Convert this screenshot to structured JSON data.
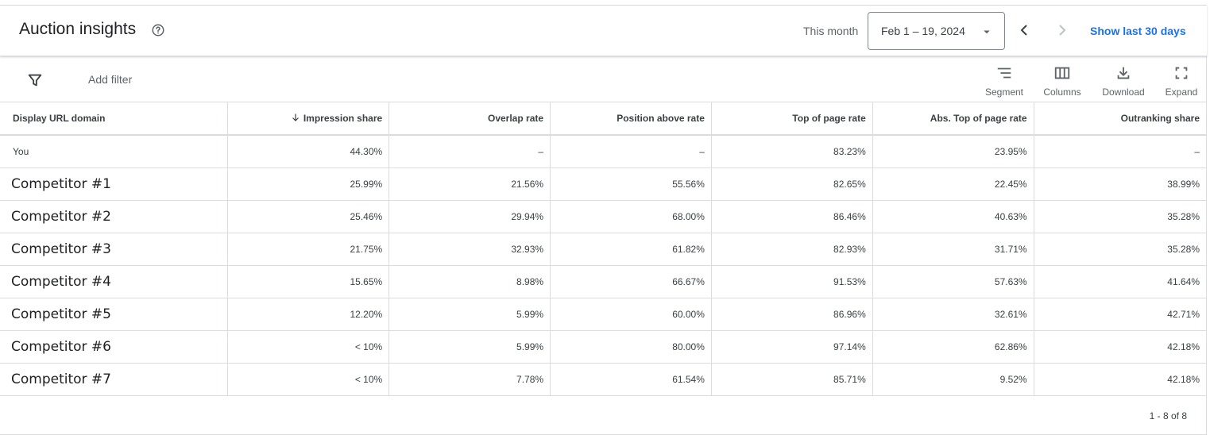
{
  "header": {
    "title": "Auction insights",
    "range_label": "This month",
    "date_range": "Feb 1 – 19, 2024",
    "show_last": "Show last 30 days"
  },
  "icons": {
    "help": "help-circle-icon",
    "caret": "dropdown-caret-icon",
    "prev": "chevron-left-icon",
    "next": "chevron-right-icon",
    "filter": "filter-icon",
    "segment": "segment-icon",
    "columns": "columns-icon",
    "download": "download-icon",
    "expand": "expand-icon"
  },
  "toolbar": {
    "add_filter": "Add filter",
    "segment": "Segment",
    "columns": "Columns",
    "download": "Download",
    "expand": "Expand"
  },
  "table": {
    "columns": [
      "Display URL domain",
      "Impression share",
      "Overlap rate",
      "Position above rate",
      "Top of page rate",
      "Abs. Top of page rate",
      "Outranking share"
    ],
    "rows": [
      {
        "name": "You",
        "cells": [
          "44.30%",
          "–",
          "–",
          "83.23%",
          "23.95%",
          "–"
        ]
      },
      {
        "name": "Competitor #1",
        "cells": [
          "25.99%",
          "21.56%",
          "55.56%",
          "82.65%",
          "22.45%",
          "38.99%"
        ]
      },
      {
        "name": "Competitor #2",
        "cells": [
          "25.46%",
          "29.94%",
          "68.00%",
          "86.46%",
          "40.63%",
          "35.28%"
        ]
      },
      {
        "name": "Competitor #3",
        "cells": [
          "21.75%",
          "32.93%",
          "61.82%",
          "82.93%",
          "31.71%",
          "35.28%"
        ]
      },
      {
        "name": "Competitor #4",
        "cells": [
          "15.65%",
          "8.98%",
          "66.67%",
          "91.53%",
          "57.63%",
          "41.64%"
        ]
      },
      {
        "name": "Competitor #5",
        "cells": [
          "12.20%",
          "5.99%",
          "60.00%",
          "86.96%",
          "32.61%",
          "42.71%"
        ]
      },
      {
        "name": "Competitor #6",
        "cells": [
          "< 10%",
          "5.99%",
          "80.00%",
          "97.14%",
          "62.86%",
          "42.18%"
        ]
      },
      {
        "name": "Competitor #7",
        "cells": [
          "< 10%",
          "7.78%",
          "61.54%",
          "85.71%",
          "9.52%",
          "42.18%"
        ]
      }
    ]
  },
  "pager": "1 - 8 of 8",
  "colors": {
    "link": "#1a73e8",
    "border": "#dadce0",
    "text": "#3c4043"
  }
}
